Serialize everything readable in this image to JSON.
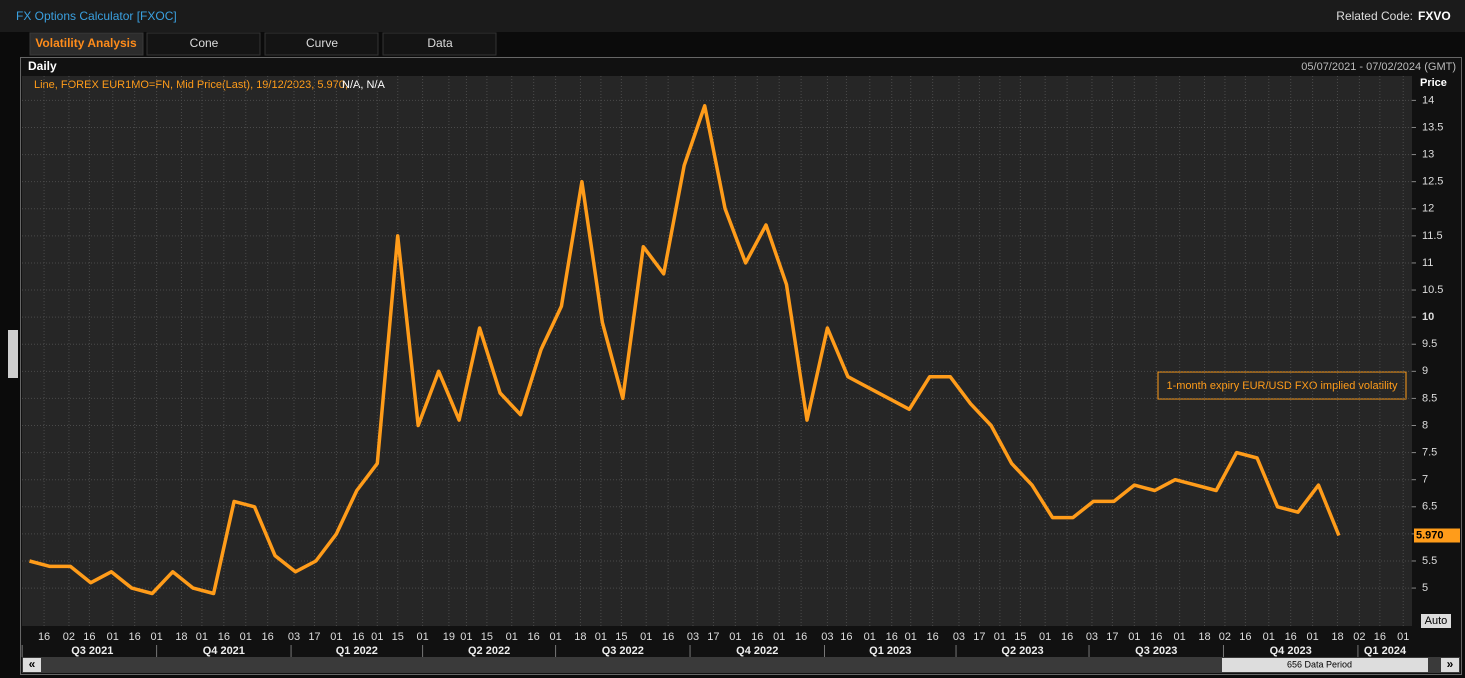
{
  "header": {
    "title": "FX Options Calculator [FXOC]",
    "related_label": "Related Code:",
    "related_code": "FXVO"
  },
  "tabs": [
    "Volatility Analysis",
    "Cone",
    "Curve",
    "Data"
  ],
  "panel": {
    "frequency": "Daily",
    "date_range": "05/07/2021 - 07/02/2024 (GMT)",
    "auto_button": "Auto",
    "data_period": "656 Data Period"
  },
  "chart_data": {
    "type": "line",
    "legend_text": "Line, FOREX EUR1MO=FN, Mid Price(Last),  19/12/2023, 5.970,",
    "legend_na": "N/A, N/A",
    "annotation": "1-month expiry EUR/USD FXO implied volatility",
    "y_label": "Price",
    "last_value_label": "5.970",
    "color": "#ff9c1a",
    "grid": true,
    "x": [
      "2021-07-06",
      "2021-07-20",
      "2021-08-03",
      "2021-08-17",
      "2021-08-31",
      "2021-09-14",
      "2021-09-28",
      "2021-10-12",
      "2021-10-26",
      "2021-11-09",
      "2021-11-23",
      "2021-12-07",
      "2021-12-21",
      "2022-01-04",
      "2022-01-18",
      "2022-02-01",
      "2022-02-15",
      "2022-03-01",
      "2022-03-15",
      "2022-03-29",
      "2022-04-12",
      "2022-04-26",
      "2022-05-10",
      "2022-05-24",
      "2022-06-07",
      "2022-06-21",
      "2022-07-05",
      "2022-07-19",
      "2022-08-02",
      "2022-08-16",
      "2022-08-30",
      "2022-09-13",
      "2022-09-27",
      "2022-10-11",
      "2022-10-25",
      "2022-11-08",
      "2022-11-22",
      "2022-12-06",
      "2022-12-20",
      "2023-01-03",
      "2023-01-17",
      "2023-01-31",
      "2023-02-14",
      "2023-02-28",
      "2023-03-14",
      "2023-03-28",
      "2023-04-11",
      "2023-04-25",
      "2023-05-09",
      "2023-05-23",
      "2023-06-06",
      "2023-06-20",
      "2023-07-04",
      "2023-07-18",
      "2023-08-01",
      "2023-08-15",
      "2023-08-29",
      "2023-09-12",
      "2023-09-26",
      "2023-10-10",
      "2023-10-24",
      "2023-11-07",
      "2023-11-21",
      "2023-12-05",
      "2023-12-19"
    ],
    "values": [
      5.5,
      5.4,
      5.4,
      5.1,
      5.3,
      5.0,
      4.9,
      5.3,
      5.0,
      4.9,
      6.6,
      6.5,
      5.6,
      5.3,
      5.5,
      6.0,
      6.8,
      7.3,
      11.5,
      8.0,
      9.0,
      8.1,
      9.8,
      8.6,
      8.2,
      9.4,
      10.2,
      12.5,
      9.9,
      8.5,
      11.3,
      10.8,
      12.8,
      13.9,
      12.0,
      11.0,
      11.7,
      10.6,
      8.1,
      9.8,
      8.9,
      8.7,
      8.5,
      8.3,
      8.9,
      8.9,
      8.4,
      8.0,
      7.3,
      6.9,
      6.3,
      6.3,
      6.6,
      6.6,
      6.9,
      6.8,
      7.0,
      6.9,
      6.8,
      7.5,
      7.4,
      6.5,
      6.4,
      6.9,
      5.97
    ],
    "xlim": [
      "2021-07-05",
      "2024-02-07"
    ],
    "ylim": [
      4.3,
      14.45
    ],
    "yticks": [
      5,
      5.5,
      6,
      6.5,
      7,
      7.5,
      8,
      8.5,
      9,
      9.5,
      10,
      10.5,
      11,
      11.5,
      12,
      12.5,
      13,
      13.5,
      14
    ],
    "xticks": [
      {
        "value": "2021-07-16",
        "label": "16"
      },
      {
        "value": "2021-08-02",
        "label": "02"
      },
      {
        "value": "2021-08-16",
        "label": "16"
      },
      {
        "value": "2021-09-01",
        "label": "01"
      },
      {
        "value": "2021-09-16",
        "label": "16"
      },
      {
        "value": "2021-10-01",
        "label": "01"
      },
      {
        "value": "2021-10-18",
        "label": "18"
      },
      {
        "value": "2021-11-01",
        "label": "01"
      },
      {
        "value": "2021-11-16",
        "label": "16"
      },
      {
        "value": "2021-12-01",
        "label": "01"
      },
      {
        "value": "2021-12-16",
        "label": "16"
      },
      {
        "value": "2022-01-03",
        "label": "03"
      },
      {
        "value": "2022-01-17",
        "label": "17"
      },
      {
        "value": "2022-02-01",
        "label": "01"
      },
      {
        "value": "2022-02-16",
        "label": "16"
      },
      {
        "value": "2022-03-01",
        "label": "01"
      },
      {
        "value": "2022-03-15",
        "label": "15"
      },
      {
        "value": "2022-04-01",
        "label": "01"
      },
      {
        "value": "2022-04-19",
        "label": "19"
      },
      {
        "value": "2022-05-01",
        "label": "01"
      },
      {
        "value": "2022-05-15",
        "label": "15"
      },
      {
        "value": "2022-06-01",
        "label": "01"
      },
      {
        "value": "2022-06-16",
        "label": "16"
      },
      {
        "value": "2022-07-01",
        "label": "01"
      },
      {
        "value": "2022-07-18",
        "label": "18"
      },
      {
        "value": "2022-08-01",
        "label": "01"
      },
      {
        "value": "2022-08-15",
        "label": "15"
      },
      {
        "value": "2022-09-01",
        "label": "01"
      },
      {
        "value": "2022-09-16",
        "label": "16"
      },
      {
        "value": "2022-10-03",
        "label": "03"
      },
      {
        "value": "2022-10-17",
        "label": "17"
      },
      {
        "value": "2022-11-01",
        "label": "01"
      },
      {
        "value": "2022-11-16",
        "label": "16"
      },
      {
        "value": "2022-12-01",
        "label": "01"
      },
      {
        "value": "2022-12-16",
        "label": "16"
      },
      {
        "value": "2023-01-03",
        "label": "03"
      },
      {
        "value": "2023-01-16",
        "label": "16"
      },
      {
        "value": "2023-02-01",
        "label": "01"
      },
      {
        "value": "2023-02-16",
        "label": "16"
      },
      {
        "value": "2023-03-01",
        "label": "01"
      },
      {
        "value": "2023-03-16",
        "label": "16"
      },
      {
        "value": "2023-04-03",
        "label": "03"
      },
      {
        "value": "2023-04-17",
        "label": "17"
      },
      {
        "value": "2023-05-01",
        "label": "01"
      },
      {
        "value": "2023-05-15",
        "label": "15"
      },
      {
        "value": "2023-06-01",
        "label": "01"
      },
      {
        "value": "2023-06-16",
        "label": "16"
      },
      {
        "value": "2023-07-03",
        "label": "03"
      },
      {
        "value": "2023-07-17",
        "label": "17"
      },
      {
        "value": "2023-08-01",
        "label": "01"
      },
      {
        "value": "2023-08-16",
        "label": "16"
      },
      {
        "value": "2023-09-01",
        "label": "01"
      },
      {
        "value": "2023-09-18",
        "label": "18"
      },
      {
        "value": "2023-10-02",
        "label": "02"
      },
      {
        "value": "2023-10-16",
        "label": "16"
      },
      {
        "value": "2023-11-01",
        "label": "01"
      },
      {
        "value": "2023-11-16",
        "label": "16"
      },
      {
        "value": "2023-12-01",
        "label": "01"
      },
      {
        "value": "2023-12-18",
        "label": "18"
      },
      {
        "value": "2024-01-02",
        "label": "02"
      },
      {
        "value": "2024-01-16",
        "label": "16"
      },
      {
        "value": "2024-02-01",
        "label": "01"
      }
    ],
    "quarters": [
      {
        "value": "2021-07-01",
        "label": "Q3 2021"
      },
      {
        "value": "2021-10-01",
        "label": "Q4 2021"
      },
      {
        "value": "2022-01-01",
        "label": "Q1 2022"
      },
      {
        "value": "2022-04-01",
        "label": "Q2 2022"
      },
      {
        "value": "2022-07-01",
        "label": "Q3 2022"
      },
      {
        "value": "2022-10-01",
        "label": "Q4 2022"
      },
      {
        "value": "2023-01-01",
        "label": "Q1 2023"
      },
      {
        "value": "2023-04-01",
        "label": "Q2 2023"
      },
      {
        "value": "2023-07-01",
        "label": "Q3 2023"
      },
      {
        "value": "2023-10-01",
        "label": "Q4 2023"
      },
      {
        "value": "2024-01-01",
        "label": "Q1 2024"
      }
    ]
  }
}
